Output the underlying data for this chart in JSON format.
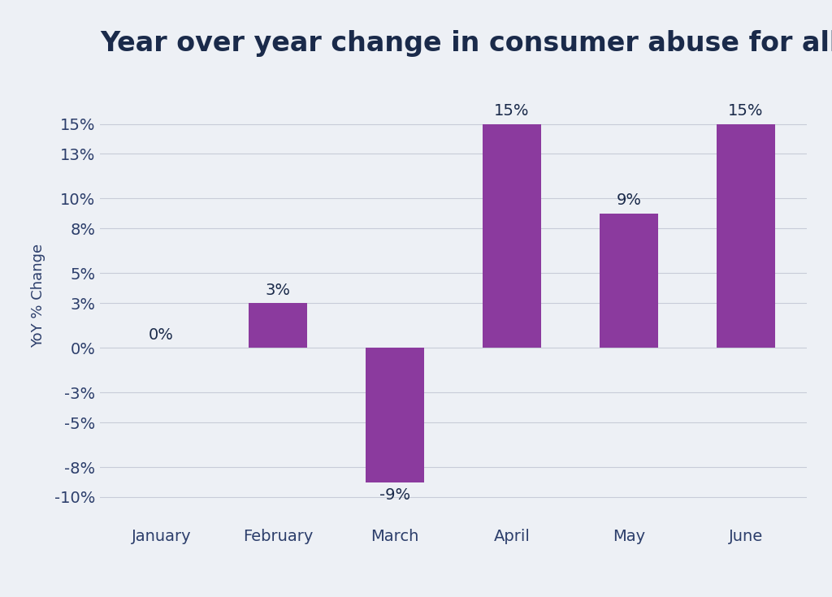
{
  "title": "Year over year change in consumer abuse for all verticals",
  "categories": [
    "January",
    "February",
    "March",
    "April",
    "May",
    "June"
  ],
  "values": [
    0,
    3,
    -9,
    15,
    9,
    15
  ],
  "bar_color": "#8B3A9E",
  "ylabel": "YoY % Change",
  "ylim": [
    -11.5,
    18.5
  ],
  "yticks": [
    -10,
    -8,
    -5,
    -3,
    0,
    3,
    5,
    8,
    10,
    13,
    15
  ],
  "ytick_labels": [
    "-10%",
    "-8%",
    "-5%",
    "-3%",
    "0%",
    "3%",
    "5%",
    "8%",
    "10%",
    "13%",
    "15%"
  ],
  "background_color": "#edf0f5",
  "title_color": "#1a2a4a",
  "label_color": "#1a2a4a",
  "tick_color": "#2c3e6b",
  "title_fontsize": 24,
  "axis_fontsize": 14,
  "ylabel_fontsize": 13,
  "bar_label_fontsize": 14,
  "grid_color": "#c8ccd8",
  "bar_width": 0.5
}
